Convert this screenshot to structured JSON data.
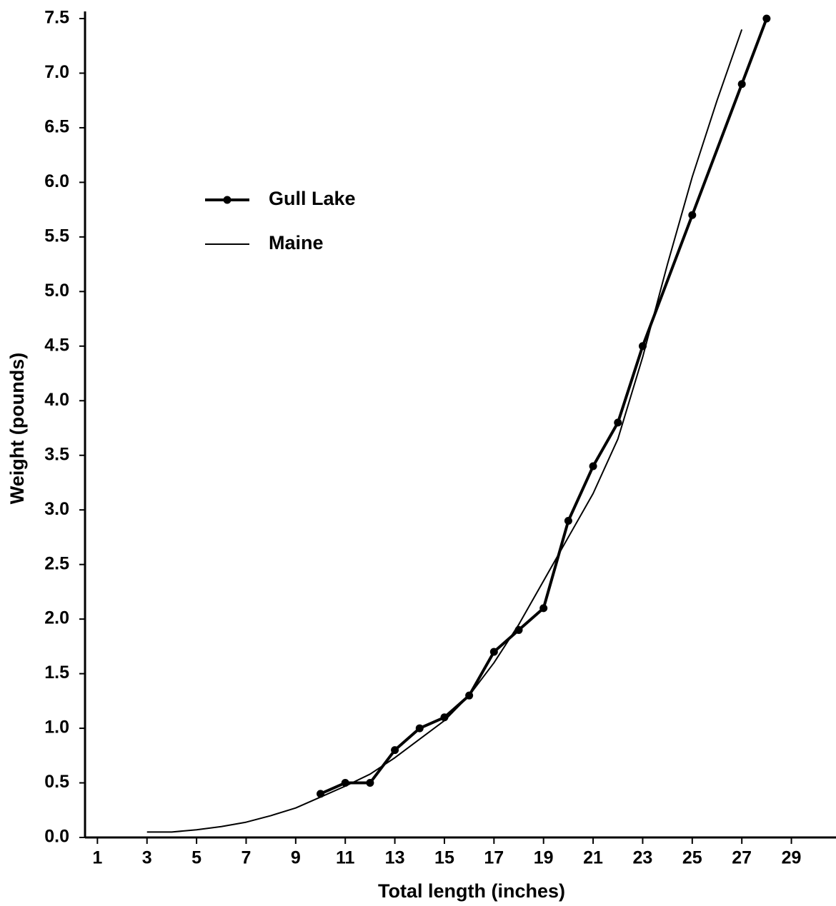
{
  "chart_data": {
    "type": "line",
    "x_label": "Total length (inches)",
    "y_label": "Weight (pounds)",
    "xlim": [
      0.5,
      30.8
    ],
    "ylim": [
      0,
      7.5
    ],
    "xticks": [
      1,
      3,
      5,
      7,
      9,
      11,
      13,
      15,
      17,
      19,
      21,
      23,
      25,
      27,
      29
    ],
    "yticks": [
      {
        "value": 0,
        "label": "0.0"
      },
      0.5,
      {
        "value": 1,
        "label": "1.0"
      },
      1.5,
      {
        "value": 2,
        "label": "2.0"
      },
      2.5,
      {
        "value": 3,
        "label": "3.0"
      },
      3.5,
      {
        "value": 4,
        "label": "4.0"
      },
      4.5,
      {
        "value": 5,
        "label": "5.0"
      },
      5.5,
      {
        "value": 6,
        "label": "6.0"
      },
      6.5,
      {
        "value": 7,
        "label": "7.0"
      },
      7.5
    ],
    "grid": false,
    "legend": "upper left",
    "series": [
      {
        "name": "Gull Lake",
        "color": "#000000",
        "marker": true,
        "x": [
          10,
          11,
          12,
          13,
          14,
          15,
          16,
          17,
          18,
          19,
          20,
          21,
          22,
          23,
          25,
          27,
          28
        ],
        "values": [
          0.4,
          0.5,
          0.5,
          0.8,
          1.0,
          1.1,
          1.3,
          1.7,
          1.9,
          2.1,
          2.9,
          3.4,
          3.8,
          4.5,
          5.7,
          6.9,
          7.5
        ]
      },
      {
        "name": "Maine",
        "color": "#000000",
        "marker": false,
        "x": [
          3,
          4,
          5,
          6,
          7,
          8,
          9,
          10,
          11,
          12,
          13,
          14,
          15,
          16,
          17,
          18,
          19,
          20,
          21,
          22,
          23,
          24,
          25,
          26,
          27
        ],
        "values": [
          0.05,
          0.05,
          0.07,
          0.1,
          0.14,
          0.2,
          0.27,
          0.37,
          0.47,
          0.58,
          0.73,
          0.9,
          1.07,
          1.3,
          1.6,
          1.95,
          2.35,
          2.75,
          3.15,
          3.65,
          4.4,
          5.25,
          6.05,
          6.75,
          7.4
        ]
      }
    ]
  }
}
